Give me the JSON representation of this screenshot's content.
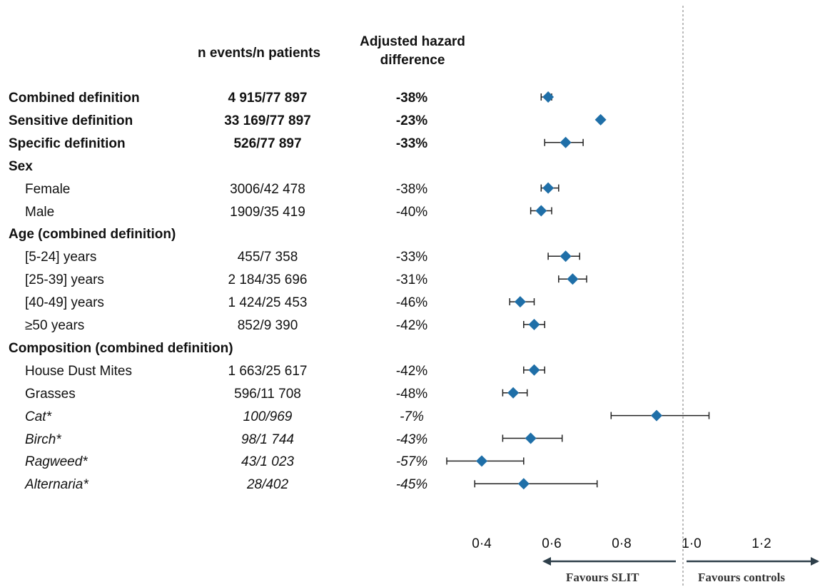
{
  "headers": {
    "counts": "n events/n patients",
    "effect_line1": "Adjusted hazard",
    "effect_line2": "difference"
  },
  "rows": [
    {
      "label": "Combined definition",
      "counts": "4 915/77 897",
      "effect": "-38%",
      "style": "bold",
      "indent": false
    },
    {
      "label": "Sensitive definition",
      "counts": "33 169/77 897",
      "effect": "-23%",
      "style": "bold",
      "indent": false
    },
    {
      "label": "Specific definition",
      "counts": "526/77 897",
      "effect": "-33%",
      "style": "bold",
      "indent": false
    },
    {
      "label": "Sex",
      "counts": "",
      "effect": "",
      "style": "bold",
      "indent": false
    },
    {
      "label": "Female",
      "counts": "3006/42 478",
      "effect": "-38%",
      "style": "normal",
      "indent": true
    },
    {
      "label": "Male",
      "counts": "1909/35 419",
      "effect": "-40%",
      "style": "normal",
      "indent": true
    },
    {
      "label": "Age (combined definition)",
      "counts": "",
      "effect": "",
      "style": "bold",
      "indent": false
    },
    {
      "label": "[5-24] years",
      "counts": "455/7 358",
      "effect": "-33%",
      "style": "normal",
      "indent": true
    },
    {
      "label": "[25-39] years",
      "counts": "2 184/35 696",
      "effect": "-31%",
      "style": "normal",
      "indent": true
    },
    {
      "label": "[40-49] years",
      "counts": "1 424/25 453",
      "effect": "-46%",
      "style": "normal",
      "indent": true
    },
    {
      "label": "≥50 years",
      "counts": "852/9 390",
      "effect": "-42%",
      "style": "normal",
      "indent": true
    },
    {
      "label": "Composition (combined definition)",
      "counts": "",
      "effect": "",
      "style": "bold",
      "indent": false
    },
    {
      "label": "House Dust Mites",
      "counts": "1 663/25 617",
      "effect": "-42%",
      "style": "normal",
      "indent": true
    },
    {
      "label": "Grasses",
      "counts": "596/11 708",
      "effect": "-48%",
      "style": "normal",
      "indent": true
    },
    {
      "label": "Cat*",
      "counts": "100/969",
      "effect": "-7%",
      "style": "italic",
      "indent": true
    },
    {
      "label": "Birch*",
      "counts": "98/1 744",
      "effect": "-43%",
      "style": "italic",
      "indent": true
    },
    {
      "label": "Ragweed*",
      "counts": "43/1 023",
      "effect": "-57%",
      "style": "italic",
      "indent": true
    },
    {
      "label": "Alternaria*",
      "counts": "28/402",
      "effect": "-45%",
      "style": "italic",
      "indent": true
    }
  ],
  "chart_data": {
    "type": "scatter",
    "x_ticks": [
      "0·4",
      "0·6",
      "0·8",
      "1·0",
      "1·2"
    ],
    "x_tick_values": [
      0.4,
      0.6,
      0.8,
      1.0,
      1.2
    ],
    "xlim": [
      0.3,
      1.35
    ],
    "reference_line": 1.0,
    "points": [
      {
        "row": 0,
        "est": 0.59,
        "lo": 0.57,
        "hi": 0.6
      },
      {
        "row": 1,
        "est": 0.74,
        "lo": 0.735,
        "hi": 0.745
      },
      {
        "row": 2,
        "est": 0.64,
        "lo": 0.58,
        "hi": 0.69
      },
      {
        "row": 4,
        "est": 0.59,
        "lo": 0.57,
        "hi": 0.62
      },
      {
        "row": 5,
        "est": 0.57,
        "lo": 0.54,
        "hi": 0.6
      },
      {
        "row": 7,
        "est": 0.64,
        "lo": 0.59,
        "hi": 0.68
      },
      {
        "row": 8,
        "est": 0.66,
        "lo": 0.62,
        "hi": 0.7
      },
      {
        "row": 9,
        "est": 0.51,
        "lo": 0.48,
        "hi": 0.55
      },
      {
        "row": 10,
        "est": 0.55,
        "lo": 0.52,
        "hi": 0.58
      },
      {
        "row": 12,
        "est": 0.55,
        "lo": 0.52,
        "hi": 0.58
      },
      {
        "row": 13,
        "est": 0.49,
        "lo": 0.46,
        "hi": 0.53
      },
      {
        "row": 14,
        "est": 0.9,
        "lo": 0.77,
        "hi": 1.05
      },
      {
        "row": 15,
        "est": 0.54,
        "lo": 0.46,
        "hi": 0.63
      },
      {
        "row": 16,
        "est": 0.4,
        "lo": 0.3,
        "hi": 0.52
      },
      {
        "row": 17,
        "est": 0.52,
        "lo": 0.38,
        "hi": 0.73
      }
    ],
    "marker_color": "#1f6fa8",
    "favours_left": "Favours SLIT",
    "favours_right": "Favours controls"
  }
}
